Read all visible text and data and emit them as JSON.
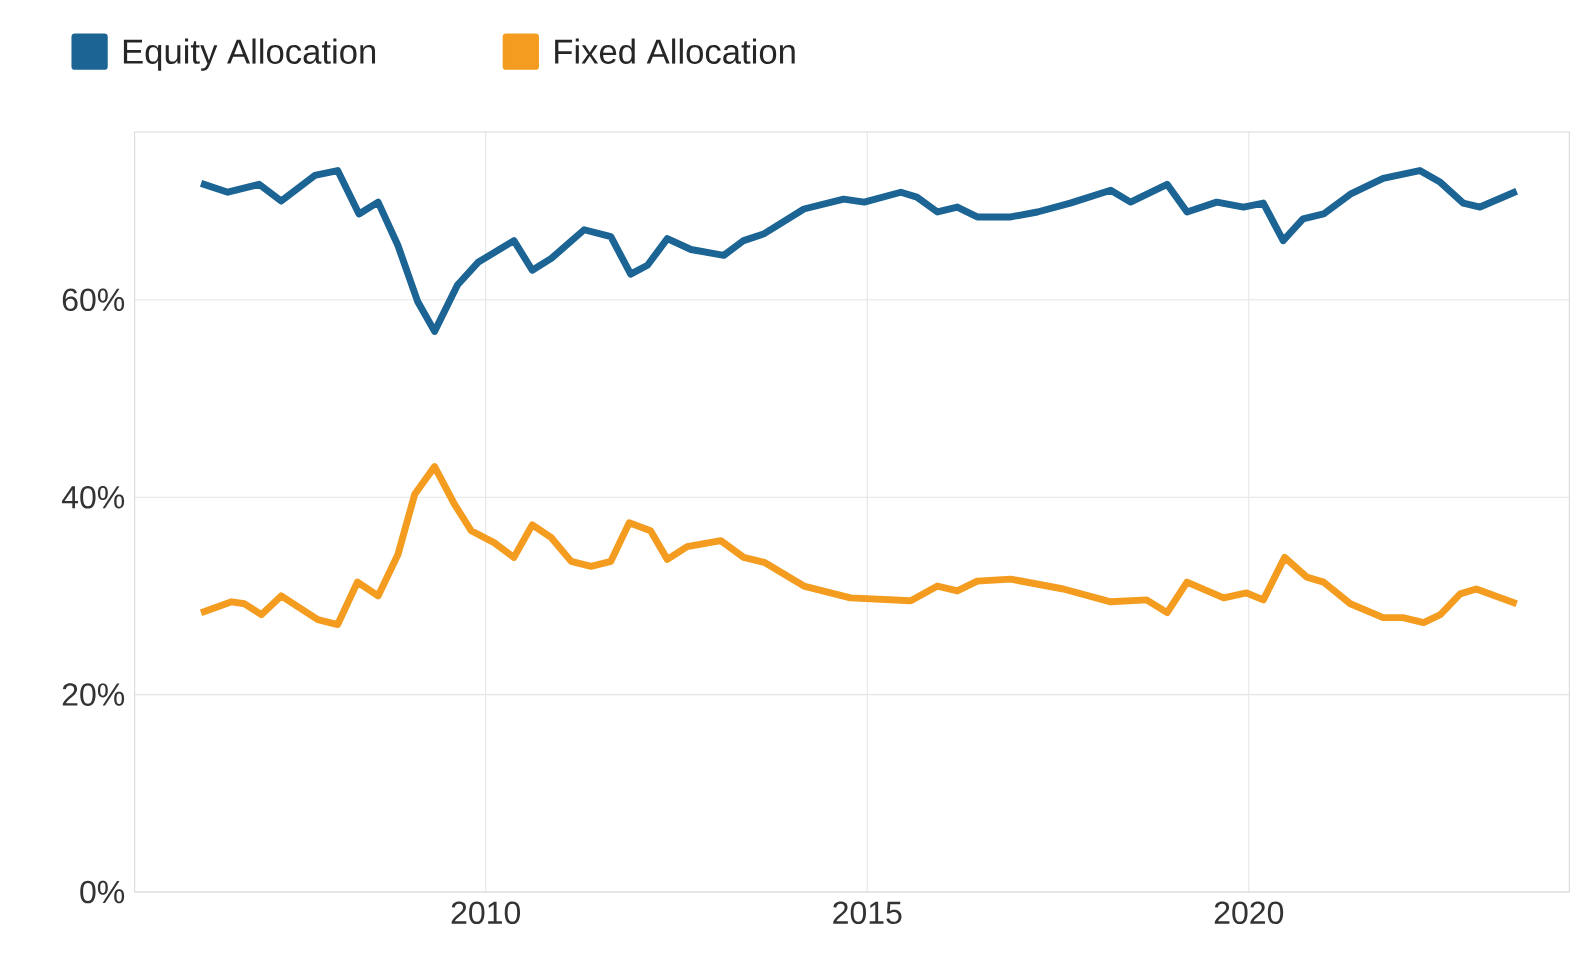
{
  "chart_data": {
    "type": "line",
    "xlim": [
      2005.4,
      2024.2
    ],
    "ylim": [
      0,
      77
    ],
    "xticks": [
      2010,
      2015,
      2020
    ],
    "yticks": [
      {
        "value": 0,
        "label": "0%"
      },
      {
        "value": 20,
        "label": "20%"
      },
      {
        "value": 40,
        "label": "40%"
      },
      {
        "value": 60,
        "label": "60%"
      }
    ],
    "grid": true,
    "legend": "top left",
    "marker": "none",
    "line_style": "solid",
    "series": [
      {
        "name": "Equity Allocation",
        "color": "#1b6493",
        "x": [
          2006.27,
          2006.62,
          2007.03,
          2007.32,
          2007.76,
          2008.06,
          2008.34,
          2008.59,
          2008.85,
          2009.11,
          2009.33,
          2009.63,
          2009.9,
          2010.37,
          2010.61,
          2010.86,
          2011.29,
          2011.64,
          2011.9,
          2012.12,
          2012.38,
          2012.69,
          2013.12,
          2013.38,
          2013.65,
          2014.17,
          2014.69,
          2014.96,
          2015.44,
          2015.65,
          2015.92,
          2016.18,
          2016.44,
          2016.88,
          2017.23,
          2017.66,
          2018.19,
          2018.45,
          2018.93,
          2019.19,
          2019.58,
          2019.93,
          2020.19,
          2020.45,
          2020.71,
          2020.98,
          2021.33,
          2021.76,
          2022.24,
          2022.51,
          2022.81,
          2023.03,
          2023.51
        ],
        "values": [
          71.8,
          70.9,
          71.7,
          70.0,
          72.6,
          73.1,
          68.7,
          69.9,
          65.5,
          59.8,
          56.8,
          61.5,
          63.8,
          66.0,
          63.0,
          64.2,
          67.1,
          66.4,
          62.6,
          63.5,
          66.2,
          65.1,
          64.5,
          66.0,
          66.7,
          69.2,
          70.2,
          69.9,
          70.9,
          70.4,
          68.9,
          69.4,
          68.4,
          68.4,
          68.9,
          69.8,
          71.1,
          69.9,
          71.7,
          68.9,
          69.9,
          69.4,
          69.8,
          66.0,
          68.2,
          68.7,
          70.7,
          72.3,
          73.1,
          71.9,
          69.8,
          69.4,
          71.0
        ]
      },
      {
        "name": "Fixed Allocation",
        "color": "#f39c1f",
        "x": [
          2006.27,
          2006.67,
          2006.84,
          2007.06,
          2007.32,
          2007.8,
          2008.06,
          2008.32,
          2008.59,
          2008.85,
          2009.07,
          2009.33,
          2009.59,
          2009.81,
          2010.11,
          2010.37,
          2010.61,
          2010.86,
          2011.12,
          2011.38,
          2011.64,
          2011.88,
          2012.16,
          2012.38,
          2012.64,
          2013.08,
          2013.38,
          2013.65,
          2014.17,
          2014.78,
          2015.57,
          2015.92,
          2016.18,
          2016.44,
          2016.88,
          2017.57,
          2018.19,
          2018.66,
          2018.93,
          2019.19,
          2019.67,
          2019.97,
          2020.19,
          2020.47,
          2020.76,
          2020.98,
          2021.33,
          2021.76,
          2022.02,
          2022.29,
          2022.51,
          2022.77,
          2022.98,
          2023.51
        ],
        "values": [
          28.3,
          29.4,
          29.2,
          28.1,
          30.0,
          27.6,
          27.1,
          31.4,
          30.0,
          34.2,
          40.3,
          43.1,
          39.3,
          36.6,
          35.4,
          33.9,
          37.2,
          35.9,
          33.5,
          33.0,
          33.5,
          37.4,
          36.6,
          33.7,
          35.0,
          35.6,
          33.9,
          33.4,
          31.0,
          29.8,
          29.5,
          31.0,
          30.5,
          31.5,
          31.7,
          30.7,
          29.4,
          29.6,
          28.3,
          31.4,
          29.8,
          30.3,
          29.6,
          33.9,
          31.9,
          31.4,
          29.2,
          27.8,
          27.8,
          27.3,
          28.1,
          30.2,
          30.7,
          29.2
        ]
      }
    ]
  }
}
